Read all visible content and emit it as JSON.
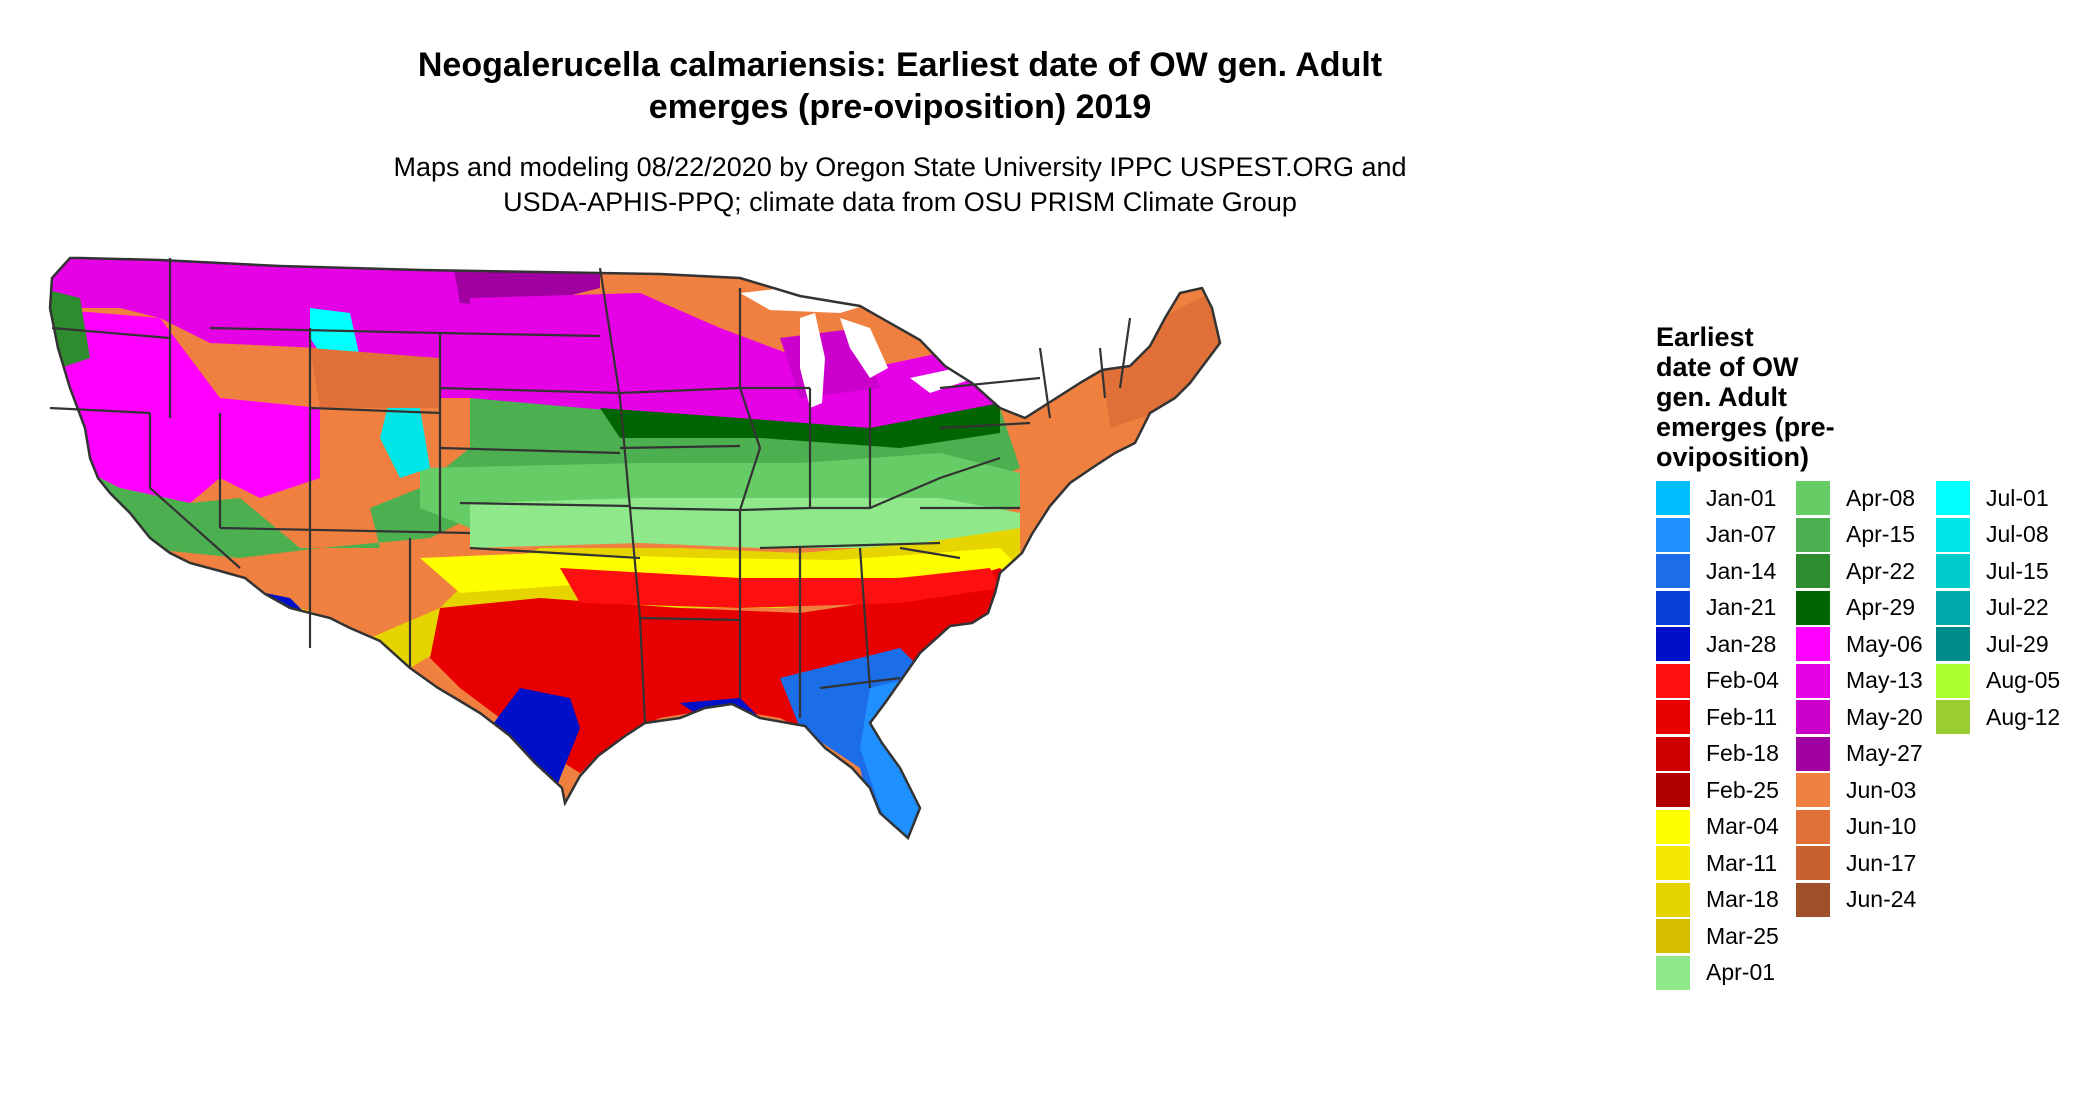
{
  "title": {
    "line1": "Neogalerucella calmariensis: Earliest date of OW gen. Adult",
    "line2": "emerges (pre-oviposition) 2019"
  },
  "subtitle": {
    "line1": "Maps and modeling 08/22/2020 by Oregon State University IPPC USPEST.ORG and",
    "line2": "USDA-APHIS-PPQ; climate data from OSU PRISM Climate Group"
  },
  "legend": {
    "title_lines": [
      "Earliest",
      "date of OW",
      "gen. Adult",
      "emerges (pre-",
      "oviposition)"
    ],
    "items": [
      {
        "label": "Jan-01",
        "color": "#00BFFF"
      },
      {
        "label": "Jan-07",
        "color": "#1E90FF"
      },
      {
        "label": "Jan-14",
        "color": "#1C6EE8"
      },
      {
        "label": "Jan-21",
        "color": "#0A3FD8"
      },
      {
        "label": "Jan-28",
        "color": "#0010C8"
      },
      {
        "label": "Feb-04",
        "color": "#FF1010"
      },
      {
        "label": "Feb-11",
        "color": "#E80000"
      },
      {
        "label": "Feb-18",
        "color": "#CC0000"
      },
      {
        "label": "Feb-25",
        "color": "#B00000"
      },
      {
        "label": "Mar-04",
        "color": "#FFFF00"
      },
      {
        "label": "Mar-11",
        "color": "#F2E800"
      },
      {
        "label": "Mar-18",
        "color": "#E6D400"
      },
      {
        "label": "Mar-25",
        "color": "#D8BE00"
      },
      {
        "label": "Apr-01",
        "color": "#8FE88A"
      },
      {
        "label": "Apr-08",
        "color": "#66CC66"
      },
      {
        "label": "Apr-15",
        "color": "#4CAF50"
      },
      {
        "label": "Apr-22",
        "color": "#2E8B2E"
      },
      {
        "label": "Apr-29",
        "color": "#006400"
      },
      {
        "label": "May-06",
        "color": "#FF00FF"
      },
      {
        "label": "May-13",
        "color": "#E600E6"
      },
      {
        "label": "May-20",
        "color": "#CC00CC"
      },
      {
        "label": "May-27",
        "color": "#A000A0"
      },
      {
        "label": "Jun-03",
        "color": "#F08040"
      },
      {
        "label": "Jun-10",
        "color": "#E07038"
      },
      {
        "label": "Jun-17",
        "color": "#C86030"
      },
      {
        "label": "Jun-24",
        "color": "#A05028"
      },
      {
        "label": "Jul-01",
        "color": "#00FFFF"
      },
      {
        "label": "Jul-08",
        "color": "#00E6E6"
      },
      {
        "label": "Jul-15",
        "color": "#00CCCC"
      },
      {
        "label": "Jul-22",
        "color": "#00AAAA"
      },
      {
        "label": "Jul-29",
        "color": "#008B8B"
      },
      {
        "label": "Aug-05",
        "color": "#ADFF2F"
      },
      {
        "label": "Aug-12",
        "color": "#9ACD32"
      }
    ]
  }
}
